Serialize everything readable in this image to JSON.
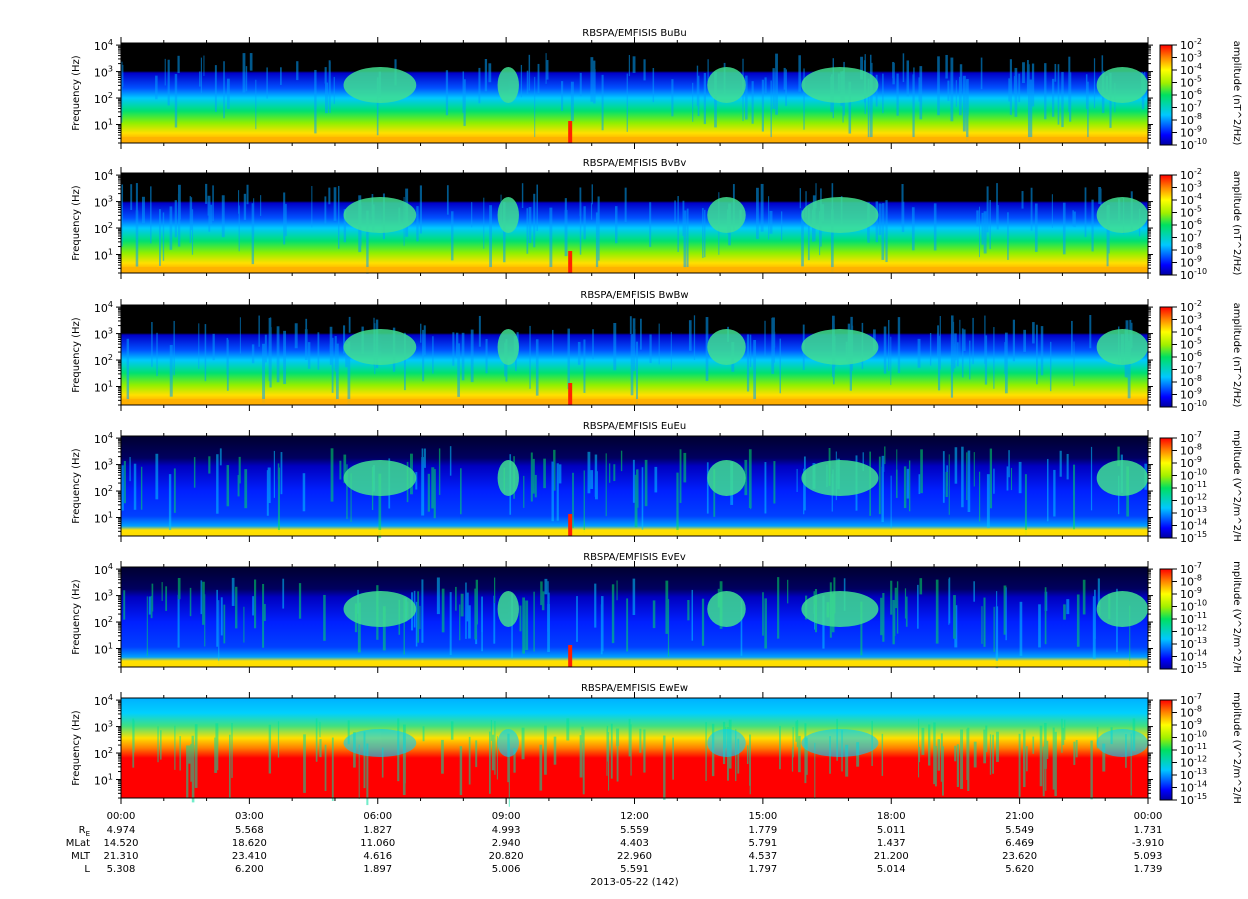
{
  "chart_data": {
    "type": "heatmap",
    "x_axis": {
      "tick_labels": [
        "00:00",
        "03:00",
        "06:00",
        "09:00",
        "12:00",
        "15:00",
        "18:00",
        "21:00",
        "00:00"
      ],
      "range_hours": [
        0,
        24
      ],
      "date_label": "2013-05-22 (142)"
    },
    "y_axis": {
      "label": "Frequency (Hz)",
      "scale": "log",
      "tick_labels": [
        "10^1",
        "10^2",
        "10^3",
        "10^4"
      ],
      "range": [
        2,
        12000
      ]
    },
    "colorscale": "rainbow (blue → cyan → green → yellow → red)",
    "panels": [
      {
        "title": "RBSPA/EMFISIS  BuBu",
        "colorbar_label": "amplitude (nT^2/Hz)",
        "colorbar_ticks": [
          "10^-2",
          "10^-3",
          "10^-4",
          "10^-5",
          "10^-6",
          "10^-7",
          "10^-8",
          "10^-9",
          "10^-10"
        ]
      },
      {
        "title": "RBSPA/EMFISIS  BvBv",
        "colorbar_label": "amplitude (nT^2/Hz)",
        "colorbar_ticks": [
          "10^-2",
          "10^-3",
          "10^-4",
          "10^-5",
          "10^-6",
          "10^-7",
          "10^-8",
          "10^-9",
          "10^-10"
        ]
      },
      {
        "title": "RBSPA/EMFISIS  BwBw",
        "colorbar_label": "amplitude (nT^2/Hz)",
        "colorbar_ticks": [
          "10^-2",
          "10^-3",
          "10^-4",
          "10^-5",
          "10^-6",
          "10^-7",
          "10^-8",
          "10^-9",
          "10^-10"
        ]
      },
      {
        "title": "RBSPA/EMFISIS  EuEu",
        "colorbar_label": "mplitude (V^2/m^2/H",
        "colorbar_ticks": [
          "10^-7",
          "10^-8",
          "10^-9",
          "10^-10",
          "10^-11",
          "10^-12",
          "10^-13",
          "10^-14",
          "10^-15"
        ]
      },
      {
        "title": "RBSPA/EMFISIS  EvEv",
        "colorbar_label": "mplitude (V^2/m^2/H",
        "colorbar_ticks": [
          "10^-7",
          "10^-8",
          "10^-9",
          "10^-10",
          "10^-11",
          "10^-12",
          "10^-13",
          "10^-14",
          "10^-15"
        ]
      },
      {
        "title": "RBSPA/EMFISIS  EwEw",
        "colorbar_label": "mplitude (V^2/m^2/H",
        "colorbar_ticks": [
          "10^-7",
          "10^-8",
          "10^-9",
          "10^-10",
          "10^-11",
          "10^-12",
          "10^-13",
          "10^-14",
          "10^-15"
        ]
      }
    ],
    "ephemeris": {
      "rows": [
        {
          "label": "R_E",
          "base": "R",
          "sub": "E",
          "values": [
            "4.974",
            "5.568",
            "1.827",
            "4.993",
            "5.559",
            "1.779",
            "5.011",
            "5.549",
            "1.731"
          ]
        },
        {
          "label": "MLat",
          "values": [
            "14.520",
            "18.620",
            "11.060",
            "2.940",
            "4.403",
            "5.791",
            "1.437",
            "6.469",
            "-3.910"
          ]
        },
        {
          "label": "MLT",
          "values": [
            "21.310",
            "23.410",
            "4.616",
            "20.820",
            "22.960",
            "4.537",
            "21.200",
            "23.620",
            "5.093"
          ]
        },
        {
          "label": "L",
          "values": [
            "5.308",
            "6.200",
            "1.897",
            "5.006",
            "5.591",
            "1.797",
            "5.014",
            "5.620",
            "1.739"
          ]
        }
      ]
    }
  }
}
